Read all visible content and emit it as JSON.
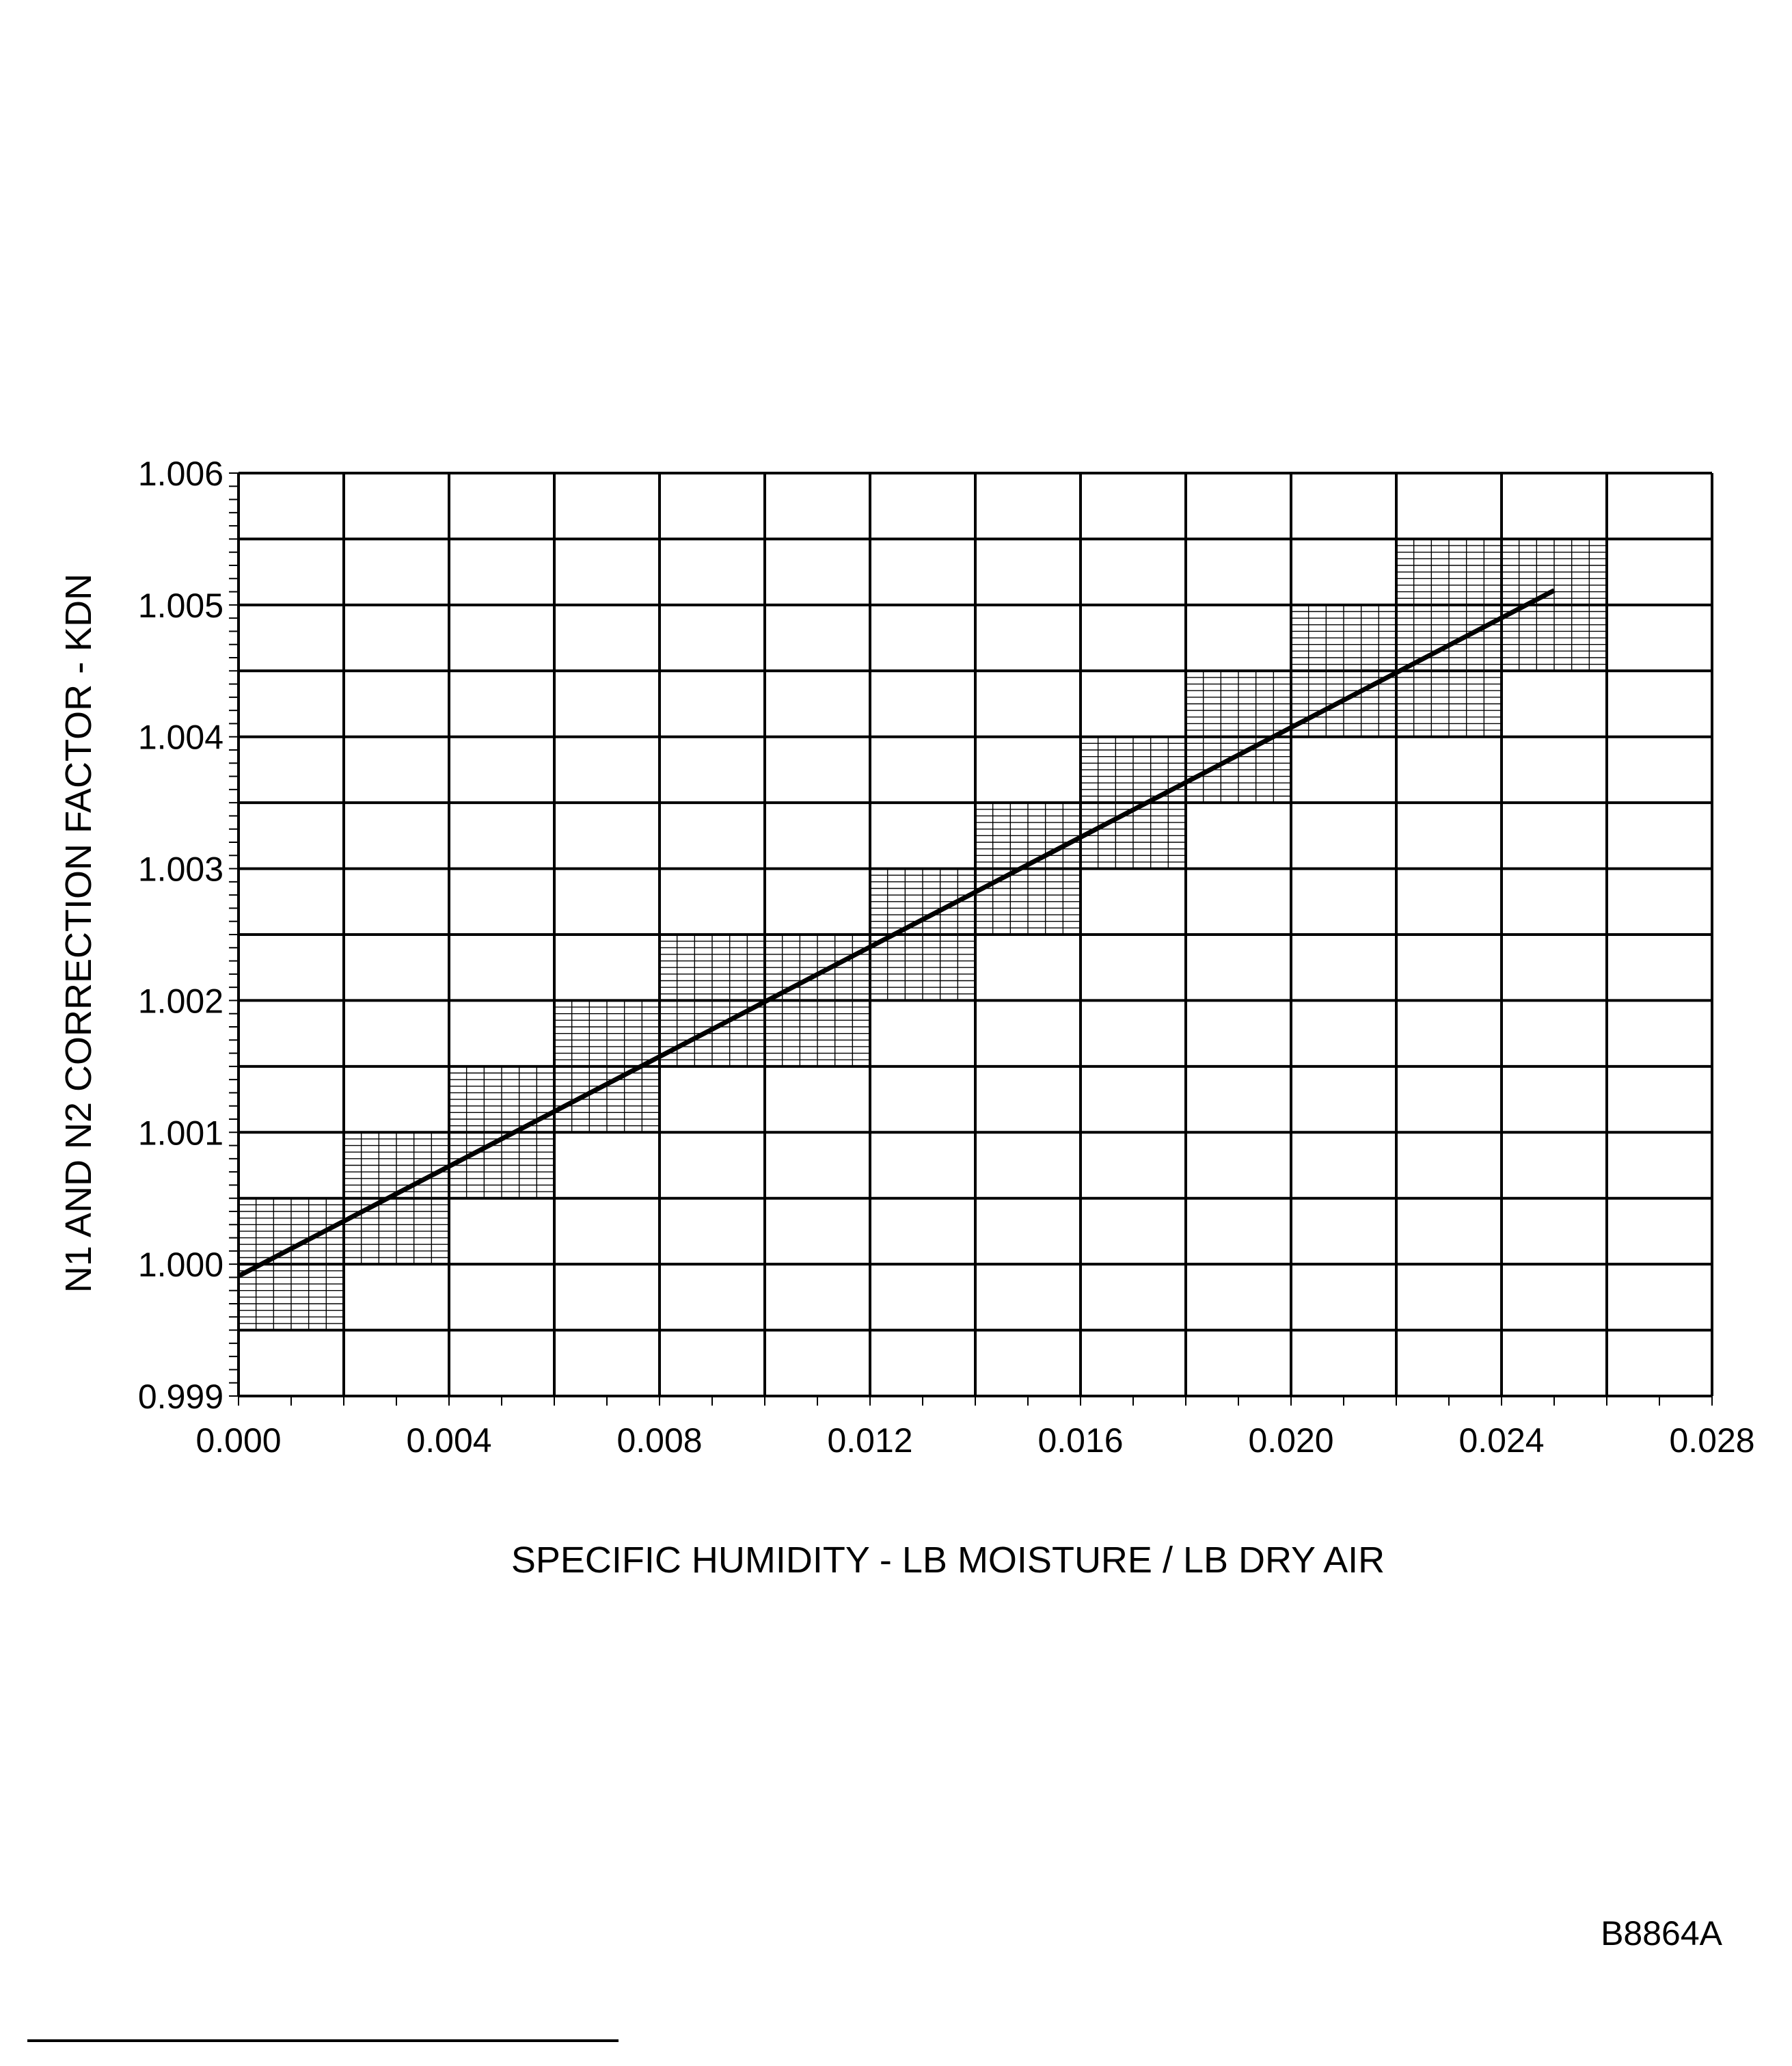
{
  "chart_data": {
    "type": "line",
    "xlabel": "SPECIFIC HUMIDITY - LB MOISTURE / LB DRY AIR",
    "ylabel": "N1 AND N2 CORRECTION FACTOR - KDN",
    "xlim": [
      0.0,
      0.028
    ],
    "ylim": [
      0.999,
      1.006
    ],
    "x_ticks": [
      "0.000",
      "0.004",
      "0.008",
      "0.012",
      "0.016",
      "0.020",
      "0.024",
      "0.028"
    ],
    "y_ticks": [
      "0.999",
      "1.000",
      "1.001",
      "1.002",
      "1.003",
      "1.004",
      "1.005",
      "1.006"
    ],
    "x_major_step": 0.002,
    "y_major_step": 0.0005,
    "grid": true,
    "series": [
      {
        "x": [
          0.0,
          0.025
        ],
        "y": [
          0.99991,
          1.00511
        ],
        "color": "#000000"
      }
    ],
    "shaded_cells": [
      {
        "x": [
          0.0,
          0.002
        ],
        "y": [
          0.9995,
          1.0005
        ]
      },
      {
        "x": [
          0.002,
          0.004
        ],
        "y": [
          1.0,
          1.001
        ]
      },
      {
        "x": [
          0.004,
          0.006
        ],
        "y": [
          1.0005,
          1.0015
        ]
      },
      {
        "x": [
          0.006,
          0.008
        ],
        "y": [
          1.001,
          1.002
        ]
      },
      {
        "x": [
          0.008,
          0.012
        ],
        "y": [
          1.0015,
          1.0025
        ]
      },
      {
        "x": [
          0.012,
          0.014
        ],
        "y": [
          1.002,
          1.003
        ]
      },
      {
        "x": [
          0.014,
          0.016
        ],
        "y": [
          1.0025,
          1.0035
        ]
      },
      {
        "x": [
          0.016,
          0.018
        ],
        "y": [
          1.003,
          1.004
        ]
      },
      {
        "x": [
          0.018,
          0.02
        ],
        "y": [
          1.0035,
          1.0045
        ]
      },
      {
        "x": [
          0.02,
          0.022
        ],
        "y": [
          1.004,
          1.005
        ]
      },
      {
        "x": [
          0.022,
          0.024
        ],
        "y": [
          1.004,
          1.0055
        ]
      },
      {
        "x": [
          0.024,
          0.026
        ],
        "y": [
          1.0045,
          1.0055
        ]
      }
    ]
  },
  "figure_id": "B8864A"
}
